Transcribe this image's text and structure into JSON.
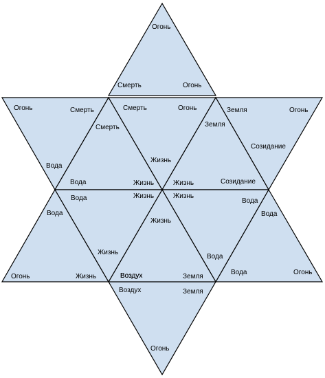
{
  "colors": {
    "fill": "#cfdff0",
    "stroke": "#000000",
    "background": "#ffffff"
  },
  "labels": [
    {
      "id": "t1a",
      "text": "Огонь"
    },
    {
      "id": "t1b",
      "text": "Смерть"
    },
    {
      "id": "t1c",
      "text": "Огонь"
    },
    {
      "id": "t2a",
      "text": "Огонь"
    },
    {
      "id": "t2b",
      "text": "Смерть"
    },
    {
      "id": "t2c",
      "text": "Вода"
    },
    {
      "id": "t3a",
      "text": "Смерть"
    },
    {
      "id": "t3b",
      "text": "Вода"
    },
    {
      "id": "t3c",
      "text": "Жизнь"
    },
    {
      "id": "t4a",
      "text": "Смерть"
    },
    {
      "id": "t4b",
      "text": "Огонь"
    },
    {
      "id": "t4c",
      "text": "Жизнь"
    },
    {
      "id": "t5a",
      "text": "Земля"
    },
    {
      "id": "t5b",
      "text": "Жизнь"
    },
    {
      "id": "t5c",
      "text": "Созидание"
    },
    {
      "id": "t6a",
      "text": "Земля"
    },
    {
      "id": "t6b",
      "text": "Огонь"
    },
    {
      "id": "t6c",
      "text": "Созидание"
    },
    {
      "id": "t7a",
      "text": "Вода"
    },
    {
      "id": "t7b",
      "text": "Огонь"
    },
    {
      "id": "t7c",
      "text": "Жизнь"
    },
    {
      "id": "t8a",
      "text": "Вода"
    },
    {
      "id": "t8b",
      "text": "Жизнь"
    },
    {
      "id": "t8c",
      "text": "Воздух"
    },
    {
      "id": "t9a",
      "text": "Жизнь"
    },
    {
      "id": "t9b",
      "text": "Жизнь"
    },
    {
      "id": "t9c",
      "text": "Воздух"
    },
    {
      "id": "t9d",
      "text": "Земля"
    },
    {
      "id": "t10a",
      "text": "Жизнь"
    },
    {
      "id": "t10b",
      "text": "Вода"
    },
    {
      "id": "t10c",
      "text": "Вода"
    },
    {
      "id": "t11a",
      "text": "Вода"
    },
    {
      "id": "t11b",
      "text": "Вода"
    },
    {
      "id": "t11c",
      "text": "Огонь"
    },
    {
      "id": "t12a",
      "text": "Воздух"
    },
    {
      "id": "t12b",
      "text": "Земля"
    },
    {
      "id": "t12c",
      "text": "Огонь"
    }
  ]
}
